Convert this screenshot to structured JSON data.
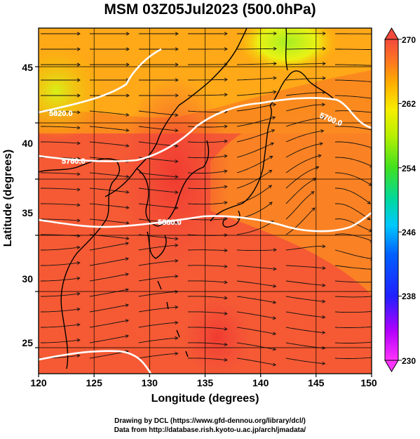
{
  "title": "MSM 03Z05Jul2023 (500.0hPa)",
  "x_axis": {
    "title": "Longitude (degrees)",
    "range": [
      120,
      150
    ],
    "ticks": [
      "120",
      "125",
      "130",
      "135",
      "140",
      "145",
      "150"
    ]
  },
  "y_axis": {
    "title": "Latitude  (degrees)",
    "range": [
      22.5,
      47.5
    ],
    "ticks": [
      "25",
      "30",
      "35",
      "40",
      "45"
    ]
  },
  "colorbar": {
    "range": [
      230,
      270
    ],
    "ticks": [
      "230",
      "238",
      "246",
      "254",
      "262",
      "270"
    ]
  },
  "contours": [
    {
      "label": "5880.0"
    },
    {
      "label": "5760.0"
    },
    {
      "label": "5700.0"
    },
    {
      "label": "5820.0"
    }
  ],
  "footer": {
    "line1": "Drawing by DCL (https://www.gfd-dennou.org/library/dcl/)",
    "line2": "Data from http://database.rish.kyoto-u.ac.jp/arch/jmadata/"
  }
}
